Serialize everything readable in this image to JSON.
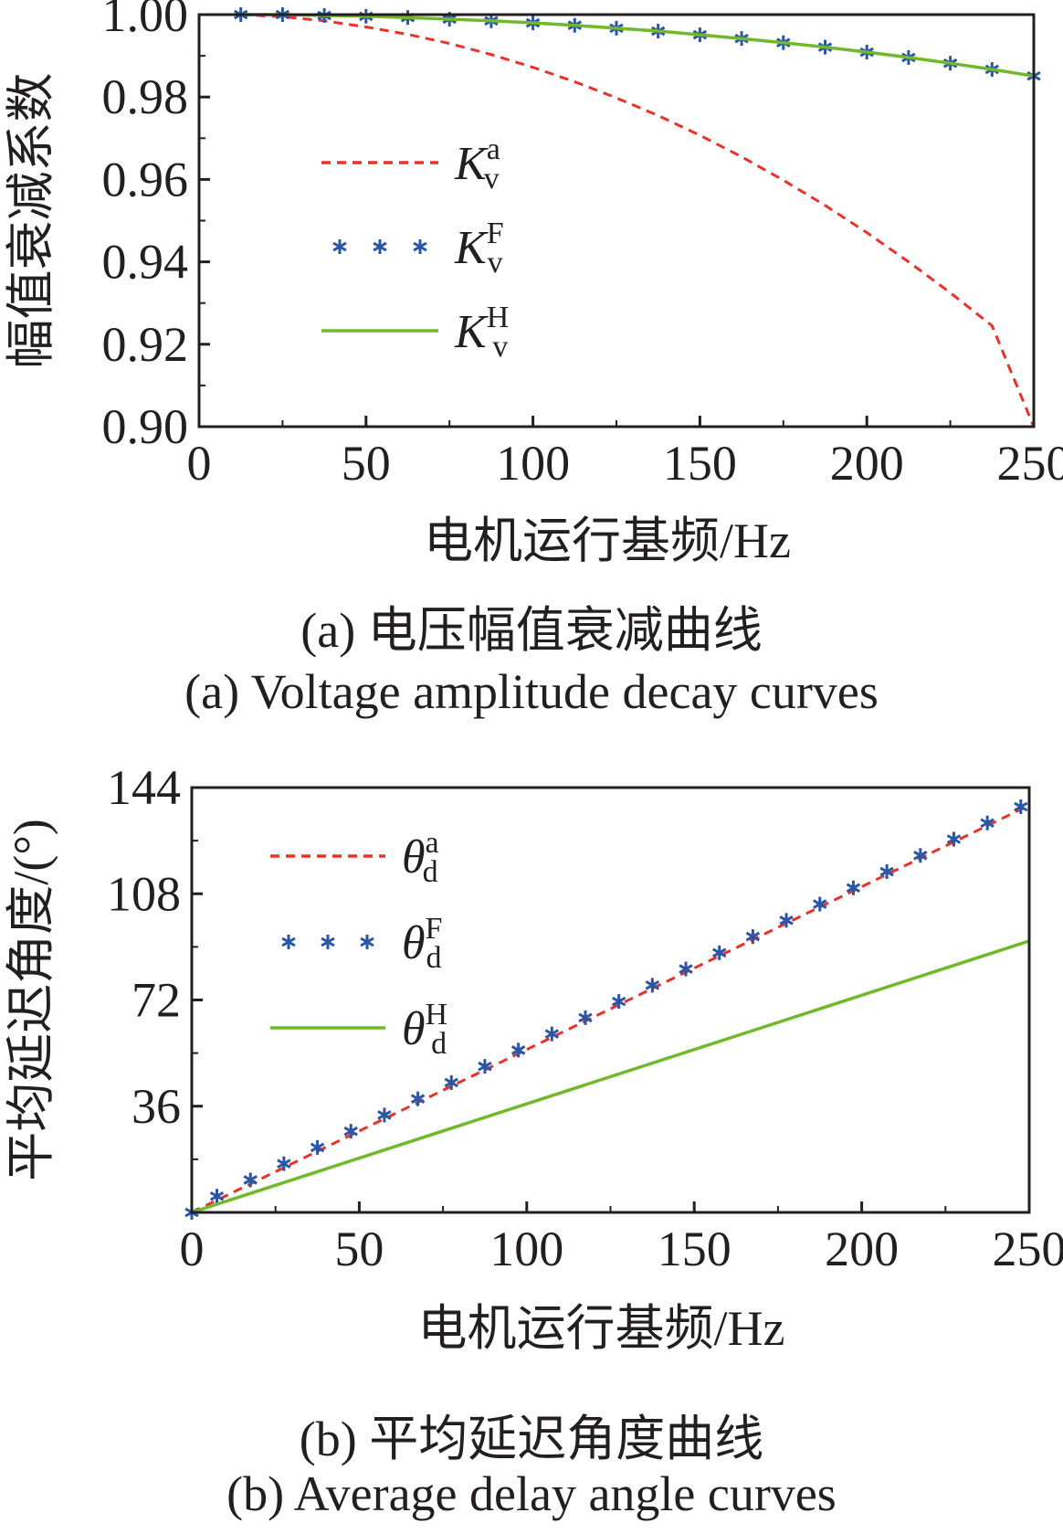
{
  "colors": {
    "analytic": "#e8332a",
    "fem": "#2a56a5",
    "hybrid": "#72b82b",
    "axis": "#231f20"
  },
  "chart_data": [
    {
      "type": "line",
      "xlabel": "电机运行基频/Hz",
      "ylabel": "幅值衰减系数",
      "xlim": [
        0,
        250
      ],
      "ylim": [
        0.9,
        1.0
      ],
      "xticks": [
        "0",
        "50",
        "100",
        "150",
        "200",
        "250"
      ],
      "yticks": [
        "0.90",
        "0.92",
        "0.94",
        "0.96",
        "0.98",
        "1.00"
      ],
      "grid": false,
      "legend_position": "center-left",
      "series": [
        {
          "name": "K_v^a",
          "base": "K",
          "sub": "v",
          "sup": "a",
          "style": "dashed",
          "x": [
            12.5,
            25,
            37.5,
            50,
            62.5,
            75,
            87.5,
            100,
            112.5,
            125,
            137.5,
            150,
            162.5,
            175,
            187.5,
            200,
            212.5,
            225,
            237.5,
            250
          ],
          "y": [
            1.0,
            0.9995,
            0.9985,
            0.997,
            0.9952,
            0.993,
            0.9903,
            0.9872,
            0.9837,
            0.9798,
            0.9755,
            0.9707,
            0.9655,
            0.9598,
            0.9537,
            0.9471,
            0.94,
            0.9325,
            0.9245,
            0.9
          ]
        },
        {
          "name": "K_v^F",
          "base": "K",
          "sub": "v",
          "sup": "F",
          "style": "markers",
          "x": [
            12.5,
            25,
            37.5,
            50,
            62.5,
            75,
            87.5,
            100,
            112.5,
            125,
            137.5,
            150,
            162.5,
            175,
            187.5,
            200,
            212.5,
            225,
            237.5,
            250
          ],
          "y": [
            1.0,
            1.0,
            0.9998,
            0.9996,
            0.9993,
            0.9989,
            0.9985,
            0.998,
            0.9974,
            0.9967,
            0.996,
            0.9951,
            0.9942,
            0.9932,
            0.9921,
            0.9909,
            0.9896,
            0.9882,
            0.9867,
            0.9851
          ]
        },
        {
          "name": "K_v^H",
          "base": "K",
          "sub": "v",
          "sup": "H",
          "style": "solid",
          "x": [
            12.5,
            25,
            37.5,
            50,
            62.5,
            75,
            87.5,
            100,
            112.5,
            125,
            137.5,
            150,
            162.5,
            175,
            187.5,
            200,
            212.5,
            225,
            237.5,
            250
          ],
          "y": [
            1.0,
            1.0,
            0.9998,
            0.9996,
            0.9993,
            0.9989,
            0.9985,
            0.998,
            0.9974,
            0.9967,
            0.996,
            0.9951,
            0.9942,
            0.9932,
            0.9921,
            0.9909,
            0.9896,
            0.9882,
            0.9867,
            0.9851
          ]
        }
      ],
      "caption_cn": "(a) 电压幅值衰减曲线",
      "caption_en": "(a) Voltage amplitude decay curves"
    },
    {
      "type": "line",
      "xlabel": "电机运行基频/Hz",
      "ylabel": "平均延迟角度/(°)",
      "xlim": [
        0,
        250
      ],
      "ylim": [
        0,
        144
      ],
      "xticks": [
        "0",
        "50",
        "100",
        "150",
        "200",
        "250"
      ],
      "yticks": [
        "36",
        "72",
        "108",
        "144"
      ],
      "grid": false,
      "legend_position": "top-left",
      "series": [
        {
          "name": "θ_d^a",
          "base": "θ",
          "sub": "d",
          "sup": "a",
          "style": "dashed",
          "x": [
            0,
            250
          ],
          "y": [
            0,
            138
          ]
        },
        {
          "name": "θ_d^F",
          "base": "θ",
          "sub": "d",
          "sup": "F",
          "style": "markers",
          "x": [
            0,
            7.5,
            17.5,
            27.5,
            37.5,
            47.5,
            57.5,
            67.5,
            77.5,
            87.5,
            97.5,
            107.5,
            117.5,
            127.5,
            137.5,
            147.5,
            157.5,
            167.5,
            177.5,
            187.5,
            197.5,
            207.5,
            217.5,
            227.5,
            237.5,
            247.5
          ],
          "y": [
            0,
            5.5,
            11,
            16.5,
            22,
            27.5,
            33,
            38.5,
            44,
            49.5,
            55,
            60.5,
            66,
            71.5,
            77,
            82.5,
            88,
            93.5,
            99,
            104.5,
            110,
            115.5,
            121,
            126.5,
            132,
            137.5
          ]
        },
        {
          "name": "θ_d^H",
          "base": "θ",
          "sub": "d",
          "sup": "H",
          "style": "solid",
          "x": [
            0,
            250
          ],
          "y": [
            0,
            92
          ]
        }
      ],
      "caption_cn": "(b) 平均延迟角度曲线",
      "caption_en": "(b) Average delay angle curves"
    }
  ]
}
